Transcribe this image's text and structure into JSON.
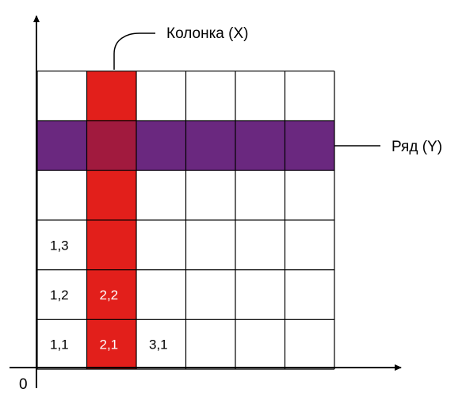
{
  "labels": {
    "column": "Колонка (X)",
    "row": "Ряд (Y)",
    "origin": "0"
  },
  "grid": {
    "columns": 6,
    "rows": 6,
    "highlight_column": 2,
    "highlight_row": 5
  },
  "cells": [
    {
      "col": 1,
      "row": 1,
      "text": "1,1"
    },
    {
      "col": 2,
      "row": 1,
      "text": "2,1"
    },
    {
      "col": 3,
      "row": 1,
      "text": "3,1"
    },
    {
      "col": 1,
      "row": 2,
      "text": "1,2"
    },
    {
      "col": 2,
      "row": 2,
      "text": "2,2"
    },
    {
      "col": 1,
      "row": 3,
      "text": "1,3"
    }
  ],
  "colors": {
    "column_fill": "#e21f1b",
    "row_fill": "#6a287f",
    "intersection_fill": "#a11a3e",
    "cell_text_on_column": "#ffffff",
    "cell_text": "#000000",
    "grid_line": "#000000",
    "axis": "#000000"
  }
}
